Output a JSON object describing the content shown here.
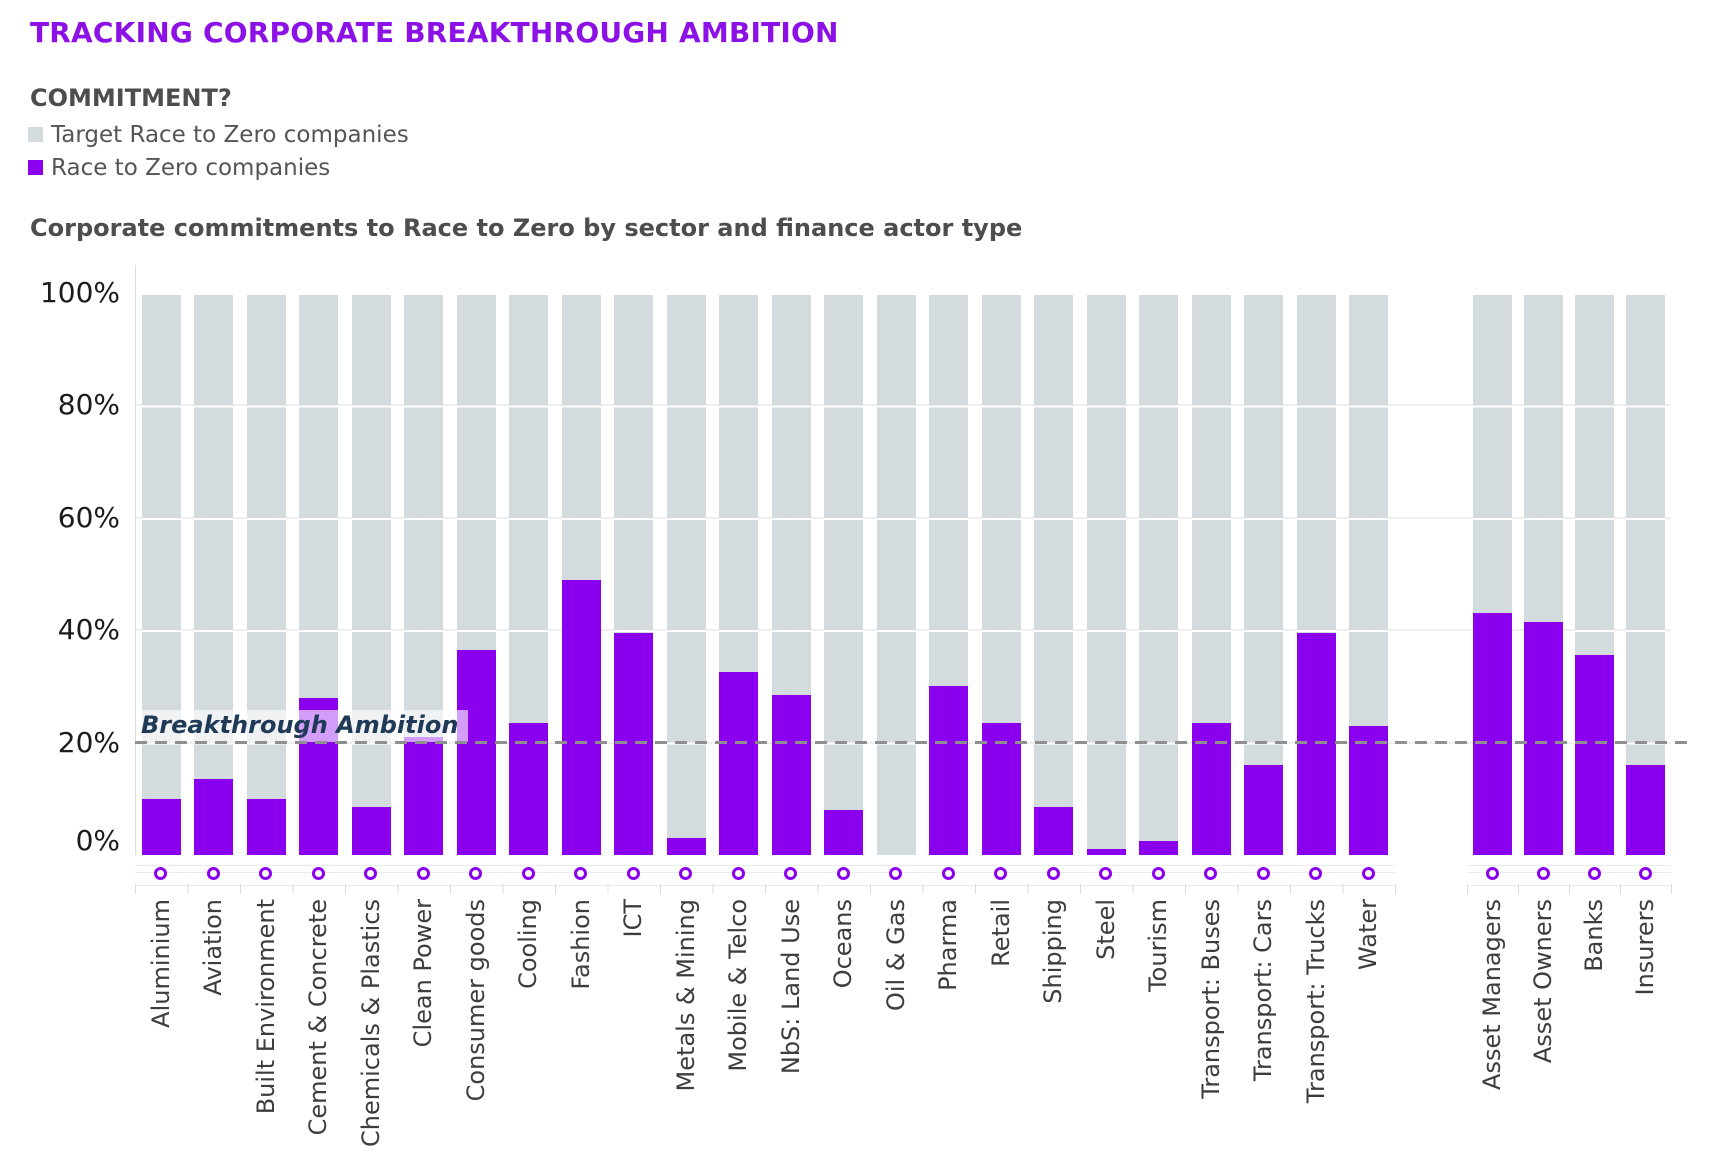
{
  "header": {
    "title": "TRACKING CORPORATE BREAKTHROUGH AMBITION",
    "title_color": "#8c11e6",
    "legend_title": "COMMITMENT?",
    "legend": [
      {
        "label": "Target Race to Zero companies",
        "color": "#d4dbde"
      },
      {
        "label": "Race to Zero companies",
        "color": "#8a00ee"
      }
    ],
    "chart_title": "Corporate commitments to Race to Zero by sector and finance actor type"
  },
  "chart_data": {
    "type": "bar",
    "title": "Corporate commitments to Race to Zero by sector and finance actor type",
    "xlabel": "",
    "ylabel": "",
    "ylim": [
      0,
      100
    ],
    "grid": "horizontal white gridlines every 20% over full-height target bars",
    "legend_position": "top-left",
    "yticks": [
      {
        "label": "0%",
        "value": 0
      },
      {
        "label": "20%",
        "value": 20
      },
      {
        "label": "40%",
        "value": 40
      },
      {
        "label": "60%",
        "value": 60
      },
      {
        "label": "80%",
        "value": 80
      },
      {
        "label": "100%",
        "value": 100
      }
    ],
    "reference_line": {
      "label": "Breakthrough Ambition",
      "value": 20,
      "style": "dashed",
      "color": "#8f8f8f",
      "label_color": "#1e3a56"
    },
    "series": [
      {
        "name": "Target Race to Zero companies",
        "color": "#d4dbde",
        "note": "full-height 100% background bar behind every category"
      },
      {
        "name": "Race to Zero companies",
        "color": "#8a00ee"
      }
    ],
    "category_marker": "purple ring below each bar",
    "groups": [
      {
        "name": "sectors",
        "categories": [
          "Aluminium",
          "Aviation",
          "Built Environment",
          "Cement & Concrete",
          "Chemicals & Plastics",
          "Clean Power",
          "Consumer goods",
          "Cooling",
          "Fashion",
          "ICT",
          "Metals & Mining",
          "Mobile & Telco",
          "NbS: Land Use",
          "Oceans",
          "Oil & Gas",
          "Pharma",
          "Retail",
          "Shipping",
          "Steel",
          "Tourism",
          "Transport: Buses",
          "Transport: Cars",
          "Transport: Trucks",
          "Water"
        ],
        "values": [
          10,
          13.5,
          10,
          28,
          8.5,
          21,
          36.5,
          23.5,
          49,
          39.5,
          3,
          32.5,
          28.5,
          8,
          0,
          30,
          23.5,
          8.5,
          1,
          2.5,
          23.5,
          16,
          39.5,
          23
        ]
      },
      {
        "name": "finance-actors",
        "categories": [
          "Asset Managers",
          "Asset Owners",
          "Banks",
          "Insurers"
        ],
        "values": [
          43,
          41.5,
          35.5,
          16
        ]
      }
    ]
  }
}
